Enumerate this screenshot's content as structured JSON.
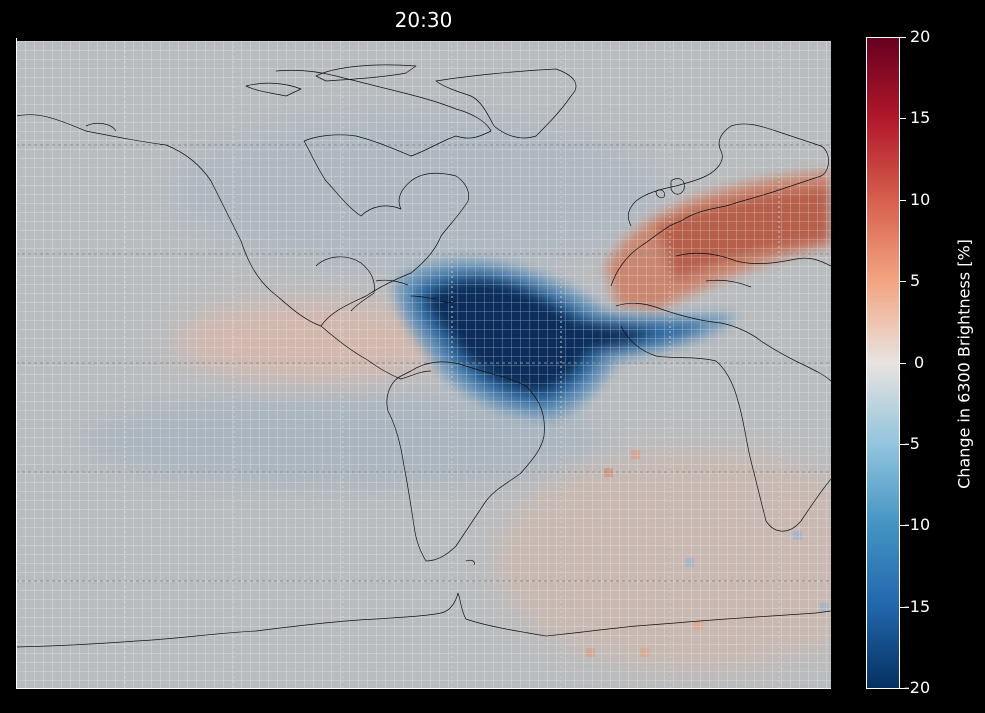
{
  "title": "20:30",
  "colorbar": {
    "label": "Change in 6300 Brightness [%]",
    "ticks": [
      "20",
      "15",
      "10",
      "5",
      "0",
      "-5",
      "-10",
      "-15",
      "-20"
    ],
    "range": [
      -20,
      20
    ],
    "colormap": [
      "#67001f",
      "#b2182b",
      "#d6604d",
      "#f4a582",
      "#e8e3df",
      "#92c5de",
      "#4393c3",
      "#2166ac",
      "#053061"
    ]
  },
  "map": {
    "background": "#b9bcbf",
    "gridlines": true,
    "features": [
      {
        "name": "depletion",
        "sign": "negative",
        "peak_percent": -20
      },
      {
        "name": "europe-enhancement",
        "sign": "positive",
        "peak_percent": 10
      },
      {
        "name": "pacific-enhancement",
        "sign": "positive",
        "peak_percent": 3
      },
      {
        "name": "south-atlantic-enhancement",
        "sign": "positive",
        "peak_percent": 2
      }
    ]
  }
}
